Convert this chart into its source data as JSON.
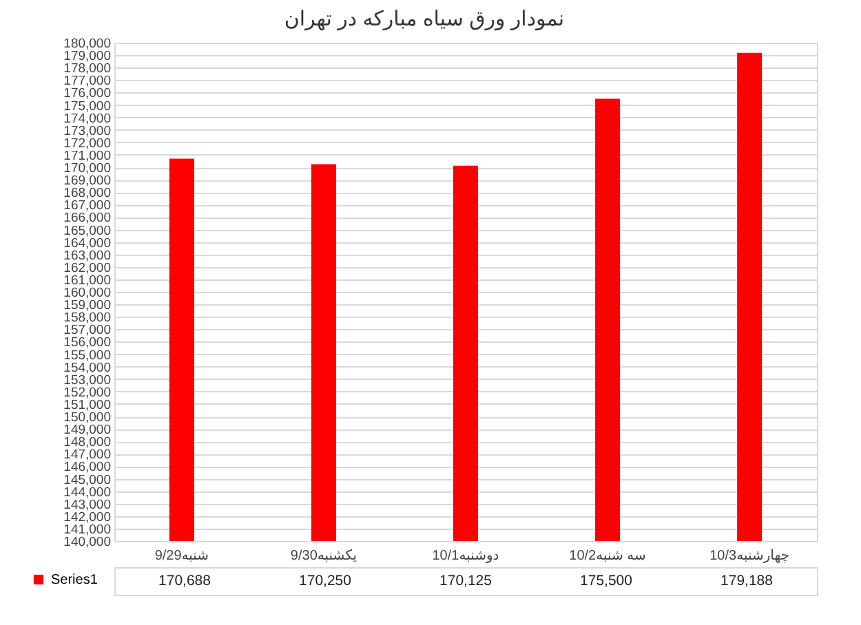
{
  "chart_data": {
    "type": "bar",
    "title": "نمودار ورق سیاه مبارکه در تهران",
    "categories": [
      "9/29شنبه",
      "9/30یکشنبه",
      "10/1دوشنبه",
      "10/2سه شنبه",
      "10/3چهارشنبه"
    ],
    "series": [
      {
        "name": "Series1",
        "color": "#ff0000",
        "values": [
          170688,
          170250,
          170125,
          175500,
          179188
        ],
        "value_labels": [
          "170,688",
          "170,250",
          "170,125",
          "175,500",
          "179,188"
        ]
      }
    ],
    "ylim": [
      140000,
      180000
    ],
    "yticks": [
      {
        "value": 140000,
        "label": "140,000"
      },
      {
        "value": 141000,
        "label": "141,000"
      },
      {
        "value": 142000,
        "label": "142,000"
      },
      {
        "value": 143000,
        "label": "143,000"
      },
      {
        "value": 144000,
        "label": "144,000"
      },
      {
        "value": 145000,
        "label": "145,000"
      },
      {
        "value": 146000,
        "label": "146,000"
      },
      {
        "value": 147000,
        "label": "147,000"
      },
      {
        "value": 148000,
        "label": "148,000"
      },
      {
        "value": 149000,
        "label": "149,000"
      },
      {
        "value": 150000,
        "label": "150,000"
      },
      {
        "value": 151000,
        "label": "151,000"
      },
      {
        "value": 152000,
        "label": "152,000"
      },
      {
        "value": 153000,
        "label": "153,000"
      },
      {
        "value": 154000,
        "label": "154,000"
      },
      {
        "value": 155000,
        "label": "155,000"
      },
      {
        "value": 156000,
        "label": "156,000"
      },
      {
        "value": 157000,
        "label": "157,000"
      },
      {
        "value": 158000,
        "label": "158,000"
      },
      {
        "value": 159000,
        "label": "159,000"
      },
      {
        "value": 160000,
        "label": "160,000"
      },
      {
        "value": 161000,
        "label": "161,000"
      },
      {
        "value": 162000,
        "label": "162,000"
      },
      {
        "value": 163000,
        "label": "163,000"
      },
      {
        "value": 164000,
        "label": "164,000"
      },
      {
        "value": 165000,
        "label": "165,000"
      },
      {
        "value": 166000,
        "label": "166,000"
      },
      {
        "value": 167000,
        "label": "167,000"
      },
      {
        "value": 168000,
        "label": "168,000"
      },
      {
        "value": 169000,
        "label": "169,000"
      },
      {
        "value": 170000,
        "label": "170,000"
      },
      {
        "value": 171000,
        "label": "171,000"
      },
      {
        "value": 172000,
        "label": "172,000"
      },
      {
        "value": 173000,
        "label": "173,000"
      },
      {
        "value": 174000,
        "label": "174,000"
      },
      {
        "value": 175000,
        "label": "175,000"
      },
      {
        "value": 176000,
        "label": "176,000"
      },
      {
        "value": 177000,
        "label": "177,000"
      },
      {
        "value": 178000,
        "label": "178,000"
      },
      {
        "value": 179000,
        "label": "179,000"
      },
      {
        "value": 180000,
        "label": "180,000"
      }
    ],
    "grid": "y",
    "legend": "bottom left"
  }
}
